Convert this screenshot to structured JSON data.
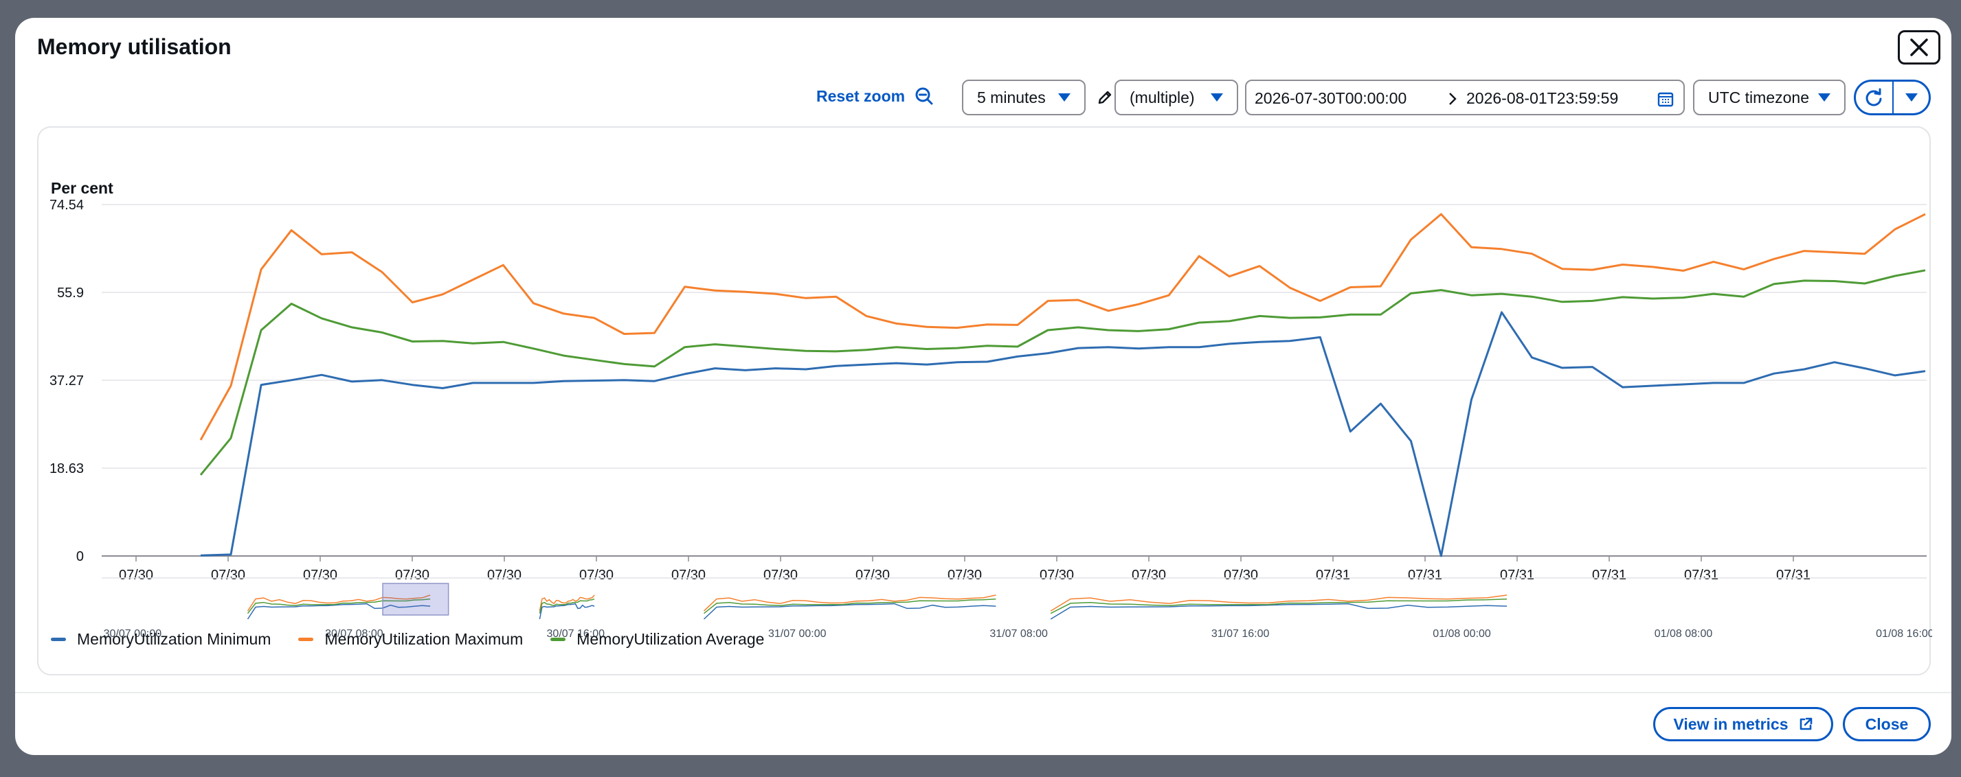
{
  "modal": {
    "title": "Memory utilisation",
    "close_icon": "close-icon"
  },
  "toolbar": {
    "reset_zoom": "Reset zoom",
    "period": "5 minutes",
    "stat": "(multiple)",
    "date_start": "2026-07-30T00:00:00",
    "date_end": "2026-08-01T23:59:59",
    "timezone": "UTC timezone"
  },
  "chart_data": {
    "type": "line",
    "ylabel": "Per cent",
    "ylim": [
      0,
      74.54
    ],
    "y_ticks": [
      "74.54",
      "55.9",
      "37.27",
      "18.63",
      "0"
    ],
    "x_tick_labels": [
      "07/30",
      "07/30",
      "07/30",
      "07/30",
      "07/30",
      "07/30",
      "07/30",
      "07/30",
      "07/30",
      "07/30",
      "07/30",
      "07/30",
      "07/30",
      "07/31",
      "07/31",
      "07/31",
      "07/31",
      "07/31",
      "07/31"
    ],
    "overview_labels": [
      "30/07 00:00",
      "30/07 08:00",
      "30/07 16:00",
      "31/07 00:00",
      "31/07 08:00",
      "31/07 16:00",
      "01/08 00:00",
      "01/08 08:00",
      "01/08 16:00"
    ],
    "grid": true,
    "legend_position": "bottom-left",
    "series": [
      {
        "name": "MemoryUtilization Minimum",
        "color": "#2e6cb1",
        "values": [
          0.1,
          0.3,
          36.3,
          37.3,
          38.4,
          37,
          37.3,
          36.3,
          35.6,
          36.7,
          36.7,
          36.7,
          37.1,
          37.2,
          37.3,
          37.1,
          38.6,
          39.8,
          39.4,
          39.8,
          39.6,
          40.3,
          40.6,
          40.9,
          40.6,
          41.1,
          41.2,
          42.3,
          43,
          44.1,
          44.3,
          44,
          44.3,
          44.3,
          45,
          45.4,
          45.6,
          46.4,
          26.4,
          32.3,
          24.4,
          0,
          33.2,
          51.7,
          42.1,
          39.9,
          40.1,
          35.8,
          36.1,
          36.4,
          36.7,
          36.7,
          38.7,
          39.6,
          41.1,
          39.8,
          38.3,
          39.2
        ]
      },
      {
        "name": "MemoryUtilization Maximum",
        "color": "#f5802d",
        "values": [
          24.6,
          36.1,
          60.8,
          69.1,
          64,
          64.4,
          60.2,
          53.8,
          55.5,
          58.6,
          61.7,
          53.6,
          51.4,
          50.5,
          47.1,
          47.3,
          57.1,
          56.3,
          56,
          55.6,
          54.7,
          55,
          50.9,
          49.3,
          48.6,
          48.4,
          49.1,
          49,
          54.1,
          54.3,
          52,
          53.4,
          55.3,
          63.6,
          59.3,
          61.5,
          56.9,
          54.1,
          57,
          57.2,
          67.1,
          72.5,
          65.5,
          65.1,
          64.1,
          60.9,
          60.7,
          61.8,
          61.3,
          60.5,
          62.4,
          60.8,
          63,
          64.7,
          64.4,
          64.1,
          69.3,
          72.5
        ]
      },
      {
        "name": "MemoryUtilization Average",
        "color": "#4e9b35",
        "values": [
          17.2,
          25,
          47.9,
          53.5,
          50.4,
          48.5,
          47.4,
          45.5,
          45.6,
          45.1,
          45.4,
          44,
          42.5,
          41.6,
          40.7,
          40.2,
          44.3,
          44.9,
          44.4,
          43.9,
          43.5,
          43.4,
          43.7,
          44.3,
          43.9,
          44.1,
          44.6,
          44.4,
          47.9,
          48.5,
          47.9,
          47.7,
          48.1,
          49.5,
          49.8,
          50.9,
          50.5,
          50.6,
          51.2,
          51.2,
          55.7,
          56.4,
          55.3,
          55.6,
          55,
          53.9,
          54.1,
          54.9,
          54.6,
          54.8,
          55.6,
          55,
          57.7,
          58.4,
          58.3,
          57.8,
          59.4,
          60.6
        ]
      }
    ]
  },
  "footer": {
    "view_in_metrics": "View in metrics",
    "close": "Close"
  }
}
